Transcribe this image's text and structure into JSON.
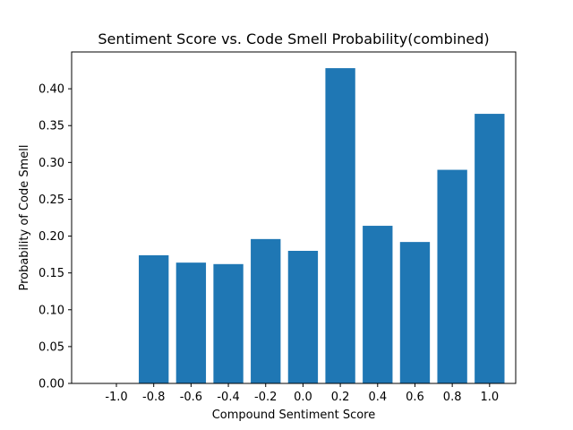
{
  "chart_data": {
    "type": "bar",
    "title": "Sentiment Score vs. Code Smell Probability(combined)",
    "xlabel": "Compound Sentiment Score",
    "ylabel": "Probability of Code Smell",
    "categories": [
      "-1.0",
      "-0.8",
      "-0.6",
      "-0.4",
      "-0.2",
      "0.0",
      "0.2",
      "0.4",
      "0.6",
      "0.8",
      "1.0"
    ],
    "values": [
      0.0,
      0.174,
      0.164,
      0.162,
      0.196,
      0.18,
      0.428,
      0.214,
      0.192,
      0.29,
      0.366
    ],
    "ylim": [
      0,
      0.45
    ],
    "yticks": [
      "0.00",
      "0.05",
      "0.10",
      "0.15",
      "0.20",
      "0.25",
      "0.30",
      "0.35",
      "0.40"
    ],
    "bar_color": "#1f77b4",
    "grid": false,
    "legend": "none"
  }
}
